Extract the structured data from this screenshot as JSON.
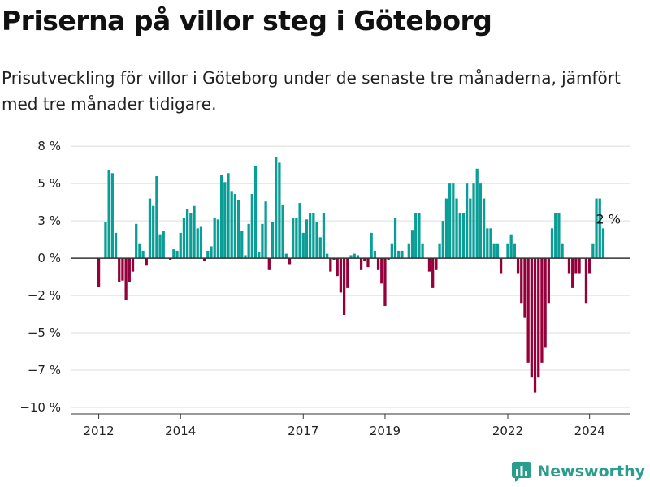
{
  "chart_data": {
    "type": "bar",
    "title": "Priserna på villor steg i Göteborg",
    "subtitle": "Prisutveckling för villor i Göteborg under de senaste tre månaderna, jämfört med tre månader tidigare.",
    "xlabel": "",
    "ylabel": "",
    "ylim": [
      -10,
      8
    ],
    "y_ticks": [
      {
        "value": 7.5,
        "label": "8 %"
      },
      {
        "value": 5,
        "label": "5 %"
      },
      {
        "value": 2.5,
        "label": "3 %"
      },
      {
        "value": 0,
        "label": "0 %"
      },
      {
        "value": -2.5,
        "label": "−2 %"
      },
      {
        "value": -5,
        "label": "−5 %"
      },
      {
        "value": -7.5,
        "label": "−7 %"
      },
      {
        "value": -10,
        "label": "−10 %"
      }
    ],
    "x_ticks": [
      {
        "index": 0,
        "label": "2012"
      },
      {
        "index": 24,
        "label": "2014"
      },
      {
        "index": 60,
        "label": "2017"
      },
      {
        "index": 84,
        "label": "2019"
      },
      {
        "index": 120,
        "label": "2022"
      },
      {
        "index": 144,
        "label": "2024"
      }
    ],
    "x_range": [
      -8,
      156
    ],
    "grid": true,
    "positive_color": "#0a9e96",
    "negative_color": "#93003a",
    "annotation": {
      "index": 148,
      "label": "2 %"
    },
    "values": [
      -1.9,
      0,
      2.4,
      5.9,
      5.7,
      1.7,
      -1.6,
      -1.5,
      -2.8,
      -1.6,
      -0.9,
      2.3,
      1.0,
      0.5,
      -0.5,
      4.0,
      3.5,
      5.5,
      1.6,
      1.8,
      0,
      -0.1,
      0.6,
      0.5,
      1.7,
      2.7,
      3.3,
      3.0,
      3.5,
      2.0,
      2.1,
      -0.2,
      0.5,
      0.8,
      2.7,
      2.6,
      5.6,
      5.1,
      5.7,
      4.5,
      4.3,
      3.9,
      1.8,
      0.2,
      2.3,
      4.3,
      6.2,
      0.4,
      2.3,
      3.8,
      -0.8,
      2.4,
      6.8,
      6.4,
      3.6,
      0.3,
      -0.4,
      2.7,
      2.7,
      3.7,
      1.7,
      2.6,
      3.0,
      3.0,
      2.4,
      1.4,
      3.0,
      0.3,
      -0.9,
      -0.1,
      -1.2,
      -2.3,
      -3.8,
      -2.0,
      0.2,
      0.3,
      0.2,
      -0.8,
      -0.2,
      -0.6,
      1.7,
      0.5,
      -0.8,
      -1.7,
      -3.2,
      -0.1,
      1.0,
      2.7,
      0.5,
      0.5,
      0,
      1.0,
      1.9,
      3.0,
      3.0,
      1.0,
      0,
      -0.9,
      -2.0,
      -0.8,
      1.0,
      2.5,
      4.0,
      5.0,
      5.0,
      4.0,
      3.0,
      3.0,
      5.0,
      4.0,
      5.0,
      6.0,
      5.0,
      4.0,
      2.0,
      2.0,
      1.0,
      1.0,
      -1.0,
      0,
      1.0,
      1.6,
      1.0,
      -1.0,
      -3.0,
      -4.0,
      -7.0,
      -8.0,
      -9.0,
      -8.0,
      -7.0,
      -6.0,
      -3.0,
      2.0,
      3.0,
      3.0,
      1.0,
      0,
      -1.0,
      -2.0,
      -1.0,
      -1.0,
      0,
      -3.0,
      -1.0,
      1.0,
      4.0,
      4.0,
      2.0
    ]
  },
  "brand": {
    "name": "Newsworthy",
    "color": "#2a9d8f"
  }
}
